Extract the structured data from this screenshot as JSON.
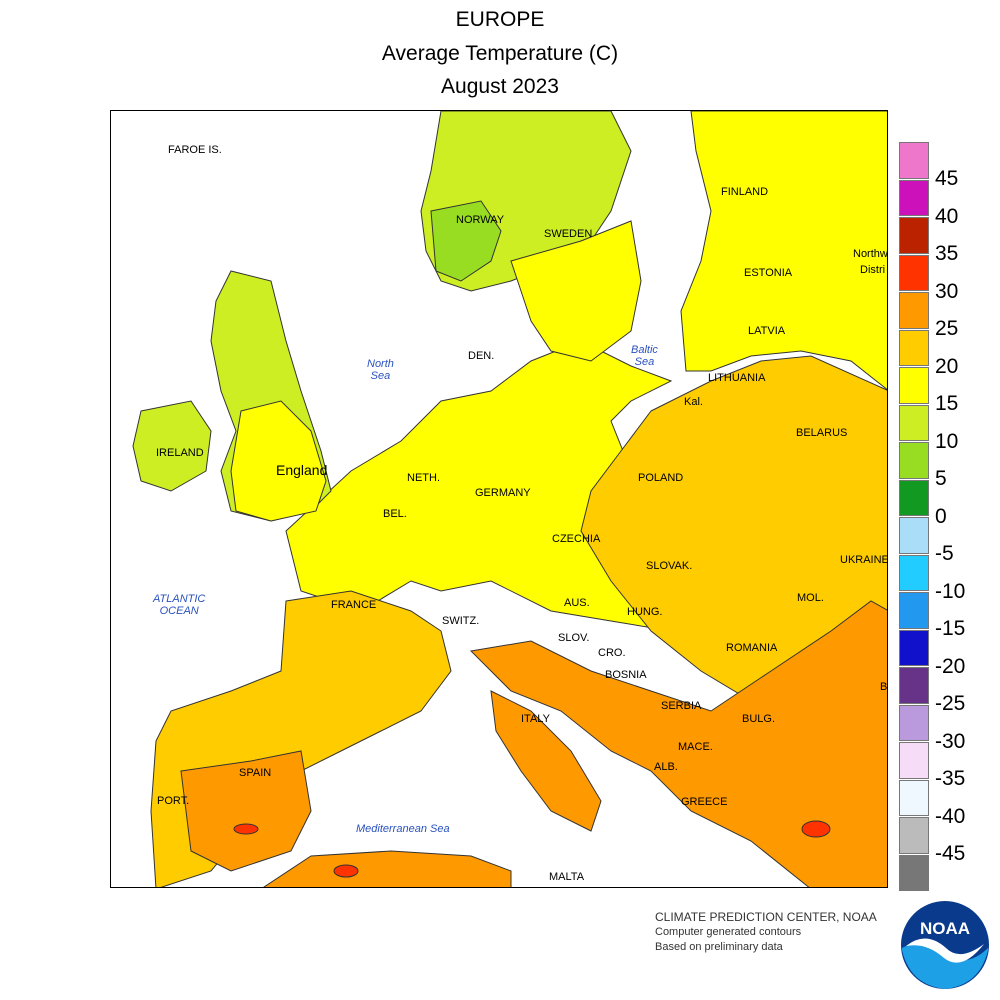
{
  "title": {
    "line1": "EUROPE",
    "line2": "Average Temperature (C)",
    "line3": "August 2023"
  },
  "map": {
    "labels": {
      "faroe": "FAROE IS.",
      "norway": "NORWAY",
      "sweden": "SWEDEN",
      "finland": "FINLAND",
      "estonia": "ESTONIA",
      "latvia": "LATVIA",
      "lithuania": "LITHUANIA",
      "kal": "Kal.",
      "belarus": "BELARUS",
      "northwest": "Northw",
      "distr": "Distri",
      "den": "DEN.",
      "ireland": "IRELAND",
      "england": "England",
      "neth": "NETH.",
      "bel": "BEL.",
      "germany": "GERMANY",
      "poland": "POLAND",
      "czechia": "CZECHIA",
      "slovak": "SLOVAK.",
      "ukraine": "UKRAINE",
      "france": "FRANCE",
      "switz": "SWITZ.",
      "aus": "AUS.",
      "hung": "HUNG.",
      "mol": "MOL.",
      "slov": "SLOV.",
      "cro": "CRO.",
      "romania": "ROMANIA",
      "bosnia": "BOSNIA",
      "serbia": "SERBIA",
      "bulg": "BULG.",
      "italy": "ITALY",
      "mace": "MACE.",
      "alb": "ALB.",
      "greece": "GREECE",
      "spain": "SPAIN",
      "port": "PORT.",
      "malta": "MALTA",
      "b": "B"
    },
    "seas": {
      "north_sea_1": "North",
      "north_sea_2": "Sea",
      "baltic_1": "Baltic",
      "baltic_2": "Sea",
      "atlantic_1": "ATLANTIC",
      "atlantic_2": "OCEAN",
      "med": "Mediterranean Sea"
    },
    "zone_colors": {
      "5_10": "#99dd22",
      "10_15": "#ccee22",
      "15_20": "#ffff00",
      "20_25": "#ffcc00",
      "25_30": "#ff9900",
      "30_35": "#ff3300"
    }
  },
  "legend": {
    "colors": [
      "#ee77cc",
      "#cc11bb",
      "#bb2200",
      "#ff3300",
      "#ff9900",
      "#ffcc00",
      "#ffff00",
      "#ccee22",
      "#99dd22",
      "#119922",
      "#aaddf7",
      "#22ccff",
      "#2299ee",
      "#1111cc",
      "#663388",
      "#bb99dd",
      "#f6dcf6",
      "#f0f8ff",
      "#bbbbbb",
      "#777777"
    ],
    "ticks": [
      "45",
      "40",
      "35",
      "30",
      "25",
      "20",
      "15",
      "10",
      "5",
      "0",
      "-5",
      "-10",
      "-15",
      "-20",
      "-25",
      "-30",
      "-35",
      "-40",
      "-45"
    ]
  },
  "credits": {
    "line1": "CLIMATE PREDICTION CENTER, NOAA",
    "line2": "Computer generated contours",
    "line3": "Based on preliminary data",
    "logo_text": "NOAA"
  }
}
